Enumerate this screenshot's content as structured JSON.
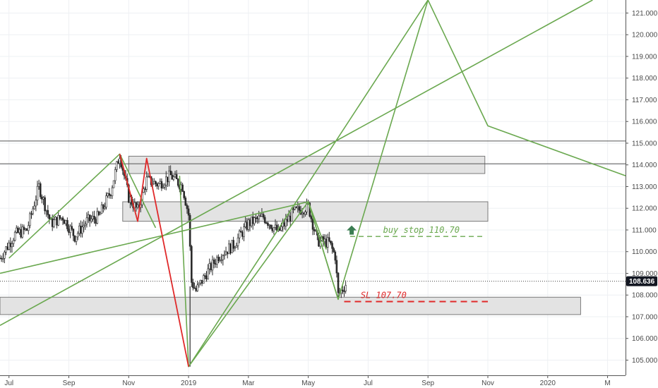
{
  "chart_data": {
    "type": "candlestick",
    "title": "",
    "price_axis": {
      "min": 104.3,
      "max": 121.6,
      "ticks": [
        "105.000",
        "106.000",
        "107.000",
        "108.000",
        "109.000",
        "110.000",
        "111.000",
        "112.000",
        "113.000",
        "114.000",
        "115.000",
        "116.000",
        "117.000",
        "118.000",
        "119.000",
        "120.000",
        "121.000"
      ],
      "last_price": "108.636"
    },
    "time_axis": {
      "labels": [
        "Jul",
        "Sep",
        "Nov",
        "2019",
        "Mar",
        "May",
        "Jul",
        "Sep",
        "Nov",
        "2020",
        "M"
      ],
      "label_months": [
        0,
        2,
        4,
        6,
        8,
        10,
        12,
        14,
        16,
        18,
        20
      ],
      "range_months": [
        -0.3,
        20.6
      ]
    },
    "colors": {
      "pattern_green": "#6aa84f",
      "pattern_red": "#e0292a",
      "zone_fill": "#e3e3e3",
      "zone_border": "#7a7a7a",
      "candle": "#2b2b2b",
      "up_arrow": "#3b7d52",
      "annotation_red": "#e0292a",
      "annotation_green": "#6aa84f",
      "price_badge_bg": "#131722",
      "price_badge_text": "#ffffff"
    },
    "candles_summary": [
      {
        "m": -0.3,
        "c": 109.7
      },
      {
        "m": 0.2,
        "c": 110.8
      },
      {
        "m": 0.6,
        "c": 111.0
      },
      {
        "m": 1.0,
        "c": 113.0
      },
      {
        "m": 1.4,
        "c": 111.3
      },
      {
        "m": 1.8,
        "c": 111.6
      },
      {
        "m": 2.2,
        "c": 110.7
      },
      {
        "m": 2.6,
        "c": 111.4
      },
      {
        "m": 3.0,
        "c": 111.6
      },
      {
        "m": 3.4,
        "c": 112.8
      },
      {
        "m": 3.7,
        "c": 114.5
      },
      {
        "m": 4.0,
        "c": 112.5
      },
      {
        "m": 4.3,
        "c": 111.9
      },
      {
        "m": 4.6,
        "c": 113.3
      },
      {
        "m": 5.0,
        "c": 113.1
      },
      {
        "m": 5.4,
        "c": 113.5
      },
      {
        "m": 5.8,
        "c": 113.0
      },
      {
        "m": 6.0,
        "c": 111.7
      },
      {
        "m": 6.1,
        "c": 108.6
      },
      {
        "m": 6.25,
        "c": 108.2
      },
      {
        "m": 6.6,
        "c": 109.0
      },
      {
        "m": 7.0,
        "c": 109.8
      },
      {
        "m": 7.5,
        "c": 110.3
      },
      {
        "m": 8.0,
        "c": 111.3
      },
      {
        "m": 8.5,
        "c": 111.6
      },
      {
        "m": 9.0,
        "c": 110.9
      },
      {
        "m": 9.5,
        "c": 111.8
      },
      {
        "m": 10.0,
        "c": 112.1
      },
      {
        "m": 10.3,
        "c": 110.5
      },
      {
        "m": 10.7,
        "c": 110.4
      },
      {
        "m": 10.9,
        "c": 109.8
      },
      {
        "m": 11.0,
        "c": 108.0
      },
      {
        "m": 11.3,
        "c": 108.6
      }
    ],
    "zones": [
      {
        "name": "zone-upper",
        "m1": 4.0,
        "m2": 15.9,
        "top": 114.4,
        "bottom": 113.6
      },
      {
        "name": "zone-mid",
        "m1": 3.8,
        "m2": 16.0,
        "top": 112.3,
        "bottom": 111.4
      },
      {
        "name": "zone-lower",
        "m1": -0.3,
        "m2": 19.1,
        "top": 107.9,
        "bottom": 107.1
      }
    ],
    "hlines": [
      115.1,
      114.05
    ],
    "pattern_green_lines": [
      [
        [
          0.0,
          109.7
        ],
        [
          3.7,
          114.5
        ],
        [
          4.3,
          111.4
        ]
      ],
      [
        [
          5.7,
          113.5
        ],
        [
          6.0,
          104.7
        ],
        [
          10.0,
          112.3
        ],
        [
          11.0,
          107.8
        ],
        [
          14.0,
          121.6
        ],
        [
          16.0,
          115.8
        ],
        [
          20.6,
          113.5
        ]
      ],
      [
        [
          3.7,
          114.5
        ],
        [
          4.9,
          111.1
        ]
      ],
      [
        [
          6.0,
          104.7
        ],
        [
          14.0,
          121.6
        ]
      ],
      [
        [
          -0.3,
          106.6
        ],
        [
          19.5,
          121.6
        ]
      ],
      [
        [
          -0.3,
          109.0
        ],
        [
          10.0,
          112.3
        ],
        [
          11.0,
          107.8
        ]
      ],
      [
        [
          10.0,
          112.3
        ],
        [
          10.6,
          110.1
        ]
      ]
    ],
    "pattern_red_line": [
      [
        3.7,
        114.5
      ],
      [
        4.3,
        111.4
      ],
      [
        4.6,
        114.3
      ],
      [
        6.0,
        104.7
      ]
    ],
    "annotations": [
      {
        "name": "buy-stop",
        "text": "buy stop 110.70",
        "price": 110.7,
        "m1": 11.4,
        "m2": 15.9
      },
      {
        "name": "stop-loss",
        "text": "SL 107.70",
        "price": 107.7,
        "m1": 11.2,
        "m2": 16.0
      }
    ]
  }
}
